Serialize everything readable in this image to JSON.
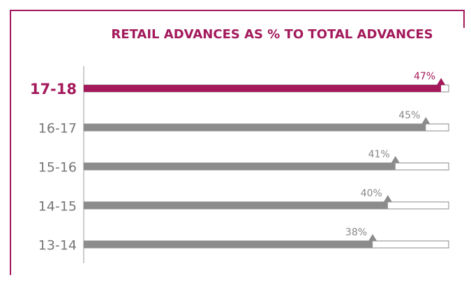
{
  "chart_data": {
    "type": "hbar",
    "title": "RETAIL ADVANCES AS % TO TOTAL ADVANCES",
    "categories": [
      "17-18",
      "16-17",
      "15-16",
      "14-15",
      "13-14"
    ],
    "values": [
      47,
      45,
      41,
      40,
      38
    ],
    "value_labels": [
      "47%",
      "45%",
      "41%",
      "40%",
      "38%"
    ],
    "colors": [
      "#a3195b",
      "#8c8c8c",
      "#8c8c8c",
      "#8c8c8c",
      "#8c8c8c"
    ],
    "highlight": 0,
    "xlim": [
      0,
      48
    ]
  }
}
